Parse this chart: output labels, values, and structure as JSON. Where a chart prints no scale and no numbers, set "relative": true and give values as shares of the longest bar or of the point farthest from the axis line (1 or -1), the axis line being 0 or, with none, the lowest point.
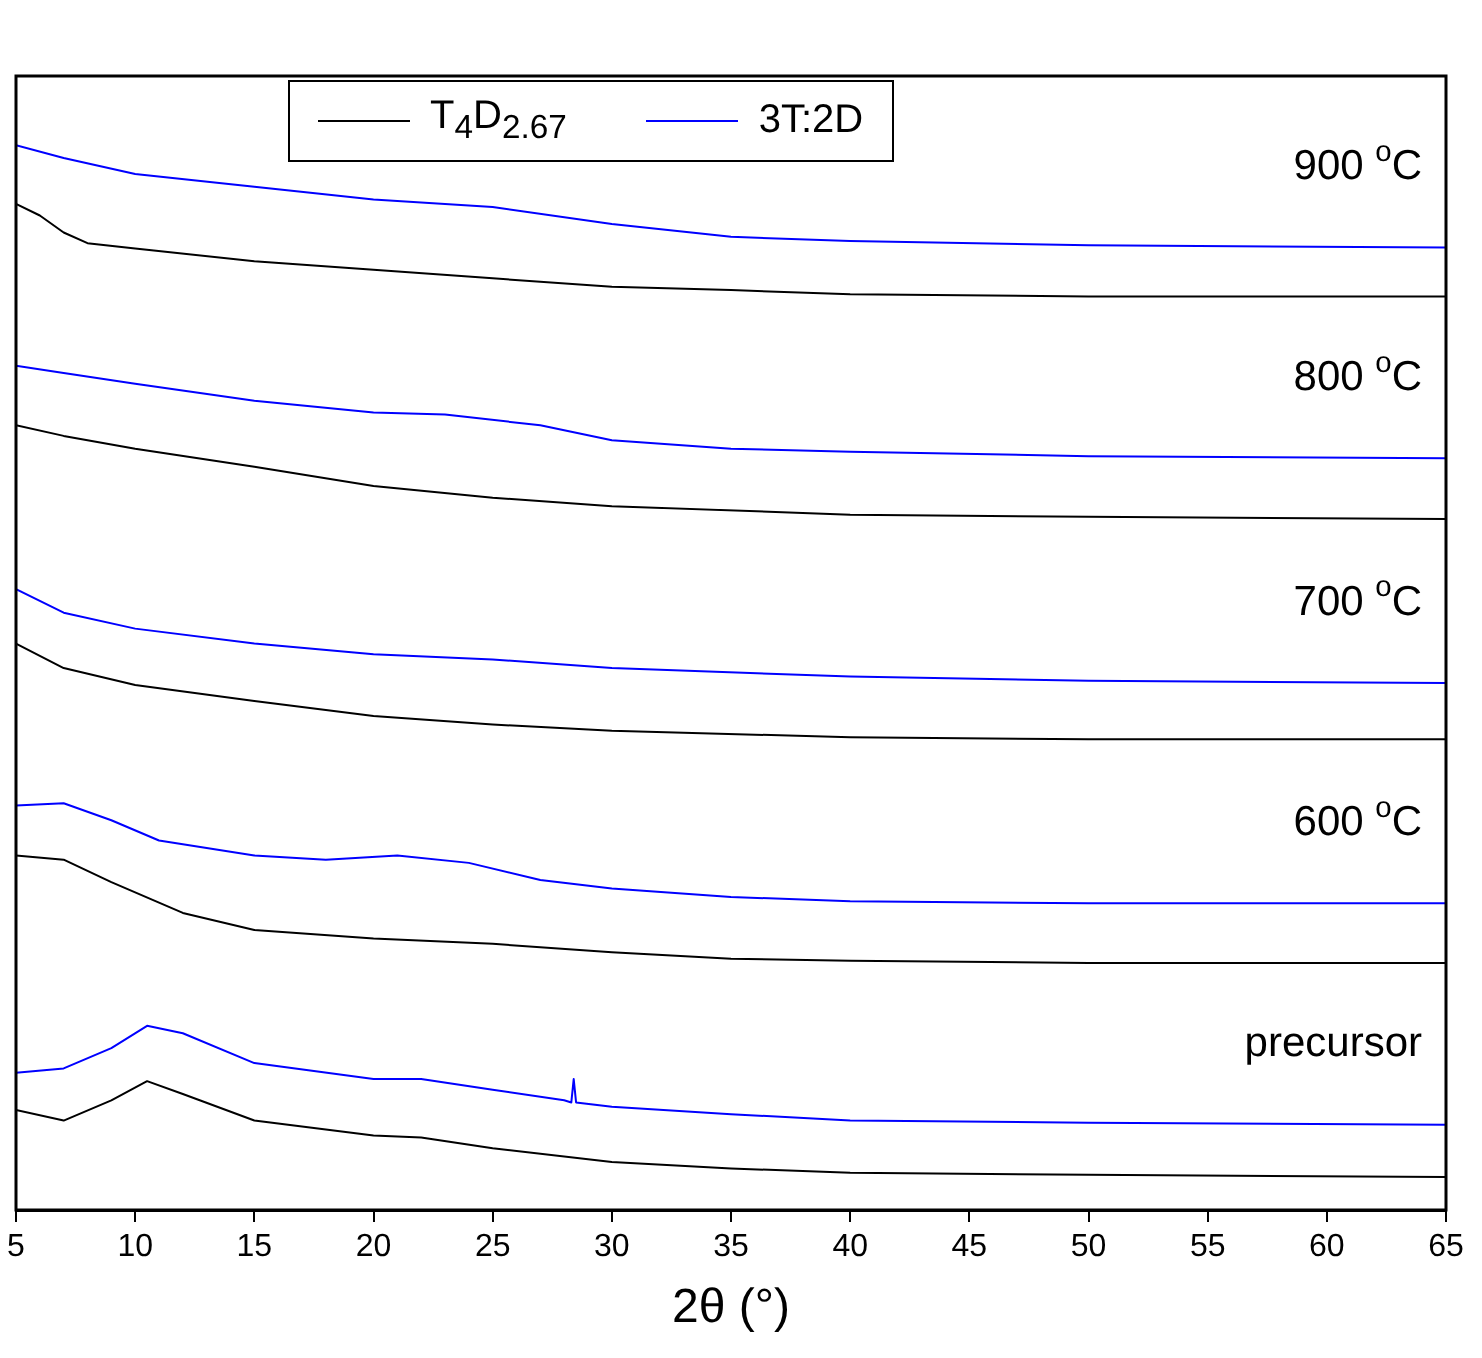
{
  "chart_data": {
    "type": "line",
    "relative": true,
    "xlabel": "2θ (°)",
    "xlim": [
      5,
      65
    ],
    "xticks": [
      5,
      10,
      15,
      20,
      25,
      30,
      35,
      40,
      45,
      50,
      55,
      60,
      65
    ],
    "legend": "top",
    "grid": false,
    "marker": "none",
    "line_style": "solid",
    "annotations": [
      "900 $^{o}$C",
      "800 $^{o}$C",
      "700 $^{o}$C",
      "600 $^{o}$C",
      "precursor"
    ],
    "series": [
      {
        "name": "T$_{4}$D$_{2.67}$",
        "color": "#000000",
        "x": [
          5,
          7,
          9,
          10.5,
          12,
          15,
          20,
          22,
          25,
          30,
          35,
          40,
          50,
          65
        ],
        "values": [
          0.094,
          0.084,
          0.103,
          0.121,
          0.109,
          0.084,
          0.07,
          0.068,
          0.058,
          0.045,
          0.039,
          0.035,
          0.033,
          0.031
        ]
      },
      {
        "name": "3T:2D",
        "color": "#0000ff",
        "x": [
          5,
          7,
          9,
          10.5,
          12,
          15,
          20,
          22,
          25,
          28,
          28.3,
          28.4,
          28.5,
          30,
          35,
          40,
          50,
          65
        ],
        "values": [
          0.129,
          0.133,
          0.152,
          0.173,
          0.166,
          0.138,
          0.123,
          0.123,
          0.113,
          0.103,
          0.101,
          0.123,
          0.101,
          0.097,
          0.09,
          0.084,
          0.082,
          0.08
        ]
      },
      {
        "color": "#000000",
        "x": [
          5,
          7,
          9,
          12,
          15,
          20,
          25,
          30,
          35,
          40,
          50,
          65
        ],
        "values": [
          0.333,
          0.329,
          0.308,
          0.279,
          0.263,
          0.255,
          0.25,
          0.242,
          0.236,
          0.234,
          0.232,
          0.232
        ]
      },
      {
        "color": "#0000ff",
        "x": [
          5,
          7,
          9,
          11,
          15,
          18,
          21,
          24,
          27,
          30,
          35,
          40,
          50,
          65
        ],
        "values": [
          0.38,
          0.382,
          0.366,
          0.347,
          0.333,
          0.329,
          0.333,
          0.326,
          0.31,
          0.302,
          0.294,
          0.29,
          0.288,
          0.288
        ]
      },
      {
        "color": "#000000",
        "x": [
          5,
          7,
          10,
          15,
          20,
          25,
          30,
          40,
          50,
          65
        ],
        "values": [
          0.532,
          0.509,
          0.493,
          0.478,
          0.464,
          0.456,
          0.45,
          0.444,
          0.442,
          0.442
        ]
      },
      {
        "color": "#0000ff",
        "x": [
          5,
          7,
          10,
          15,
          20,
          25,
          30,
          40,
          50,
          65
        ],
        "values": [
          0.583,
          0.561,
          0.546,
          0.532,
          0.522,
          0.517,
          0.509,
          0.501,
          0.497,
          0.495
        ]
      },
      {
        "color": "#000000",
        "x": [
          5,
          7,
          10,
          15,
          20,
          25,
          30,
          40,
          50,
          65
        ],
        "values": [
          0.737,
          0.727,
          0.715,
          0.698,
          0.68,
          0.669,
          0.661,
          0.653,
          0.651,
          0.649
        ]
      },
      {
        "color": "#0000ff",
        "x": [
          5,
          7,
          10,
          15,
          20,
          23,
          27,
          30,
          35,
          40,
          50,
          65
        ],
        "values": [
          0.793,
          0.786,
          0.776,
          0.76,
          0.749,
          0.747,
          0.737,
          0.723,
          0.715,
          0.712,
          0.708,
          0.706
        ]
      },
      {
        "color": "#000000",
        "x": [
          5,
          6,
          7,
          8,
          10,
          15,
          20,
          25,
          30,
          35,
          40,
          50,
          65
        ],
        "values": [
          0.945,
          0.934,
          0.918,
          0.908,
          0.903,
          0.891,
          0.883,
          0.875,
          0.867,
          0.864,
          0.86,
          0.858,
          0.858
        ]
      },
      {
        "color": "#0000ff",
        "x": [
          5,
          7,
          10,
          15,
          20,
          25,
          30,
          35,
          40,
          50,
          65
        ],
        "values": [
          1,
          0.988,
          0.973,
          0.961,
          0.949,
          0.942,
          0.926,
          0.914,
          0.91,
          0.906,
          0.904
        ]
      }
    ]
  }
}
